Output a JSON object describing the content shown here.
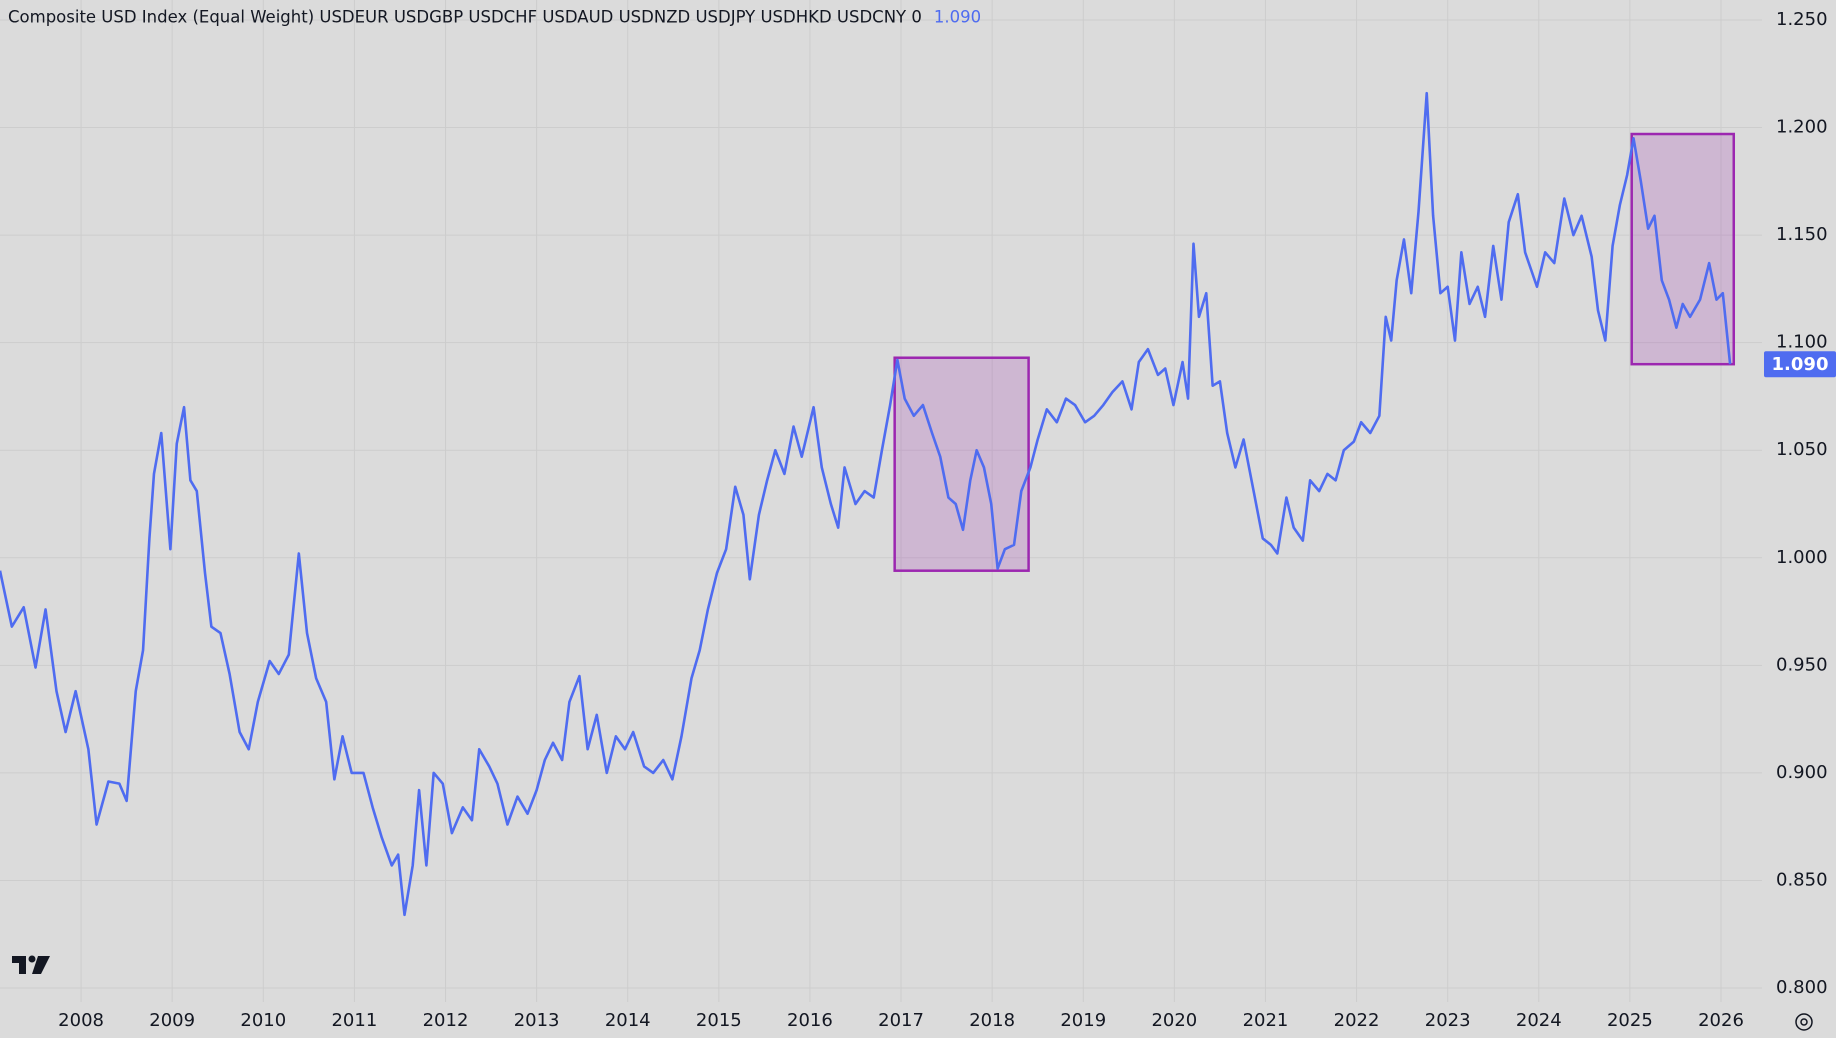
{
  "chart_data": {
    "type": "line",
    "title": "Composite USD Index (Equal Weight) USDEUR USDGBP USDCHF USDAUD USDNZD USDJPY USDHKD USDCNY 0",
    "last_value": {
      "value": 1.09,
      "label": "1.090"
    },
    "color": "#4f6cf0",
    "grid": true,
    "xlim": [
      2007.11,
      2026.45
    ],
    "ylim": [
      0.7935,
      1.2593
    ],
    "xticks": [
      2008,
      2009,
      2010,
      2011,
      2012,
      2013,
      2014,
      2015,
      2016,
      2017,
      2018,
      2019,
      2020,
      2021,
      2022,
      2023,
      2024,
      2025,
      2026
    ],
    "yticks": [
      {
        "value": 0.8,
        "label": "0.800"
      },
      {
        "value": 0.85,
        "label": "0.850"
      },
      {
        "value": 0.9,
        "label": "0.900"
      },
      {
        "value": 0.95,
        "label": "0.950"
      },
      {
        "value": 1.0,
        "label": "1.000"
      },
      {
        "value": 1.05,
        "label": "1.050"
      },
      {
        "value": 1.1,
        "label": "1.100"
      },
      {
        "value": 1.15,
        "label": "1.150"
      },
      {
        "value": 1.2,
        "label": "1.200"
      },
      {
        "value": 1.25,
        "label": "1.250"
      }
    ],
    "highlight_regions": [
      {
        "xlim": [
          2016.93,
          2018.4
        ],
        "ylim": [
          0.994,
          1.093
        ],
        "color": "#9c27b0"
      },
      {
        "xlim": [
          2025.02,
          2026.14
        ],
        "ylim": [
          1.09,
          1.197
        ],
        "color": "#9c27b0"
      }
    ],
    "x": [
      2007.11,
      2007.24,
      2007.37,
      2007.5,
      2007.61,
      2007.73,
      2007.83,
      2007.94,
      2008.08,
      2008.17,
      2008.3,
      2008.42,
      2008.5,
      2008.6,
      2008.68,
      2008.75,
      2008.8,
      2008.88,
      2008.98,
      2009.05,
      2009.13,
      2009.2,
      2009.27,
      2009.36,
      2009.43,
      2009.53,
      2009.63,
      2009.74,
      2009.84,
      2009.94,
      2010.07,
      2010.17,
      2010.28,
      2010.39,
      2010.48,
      2010.58,
      2010.69,
      2010.78,
      2010.87,
      2010.97,
      2011.1,
      2011.2,
      2011.3,
      2011.41,
      2011.48,
      2011.55,
      2011.64,
      2011.71,
      2011.79,
      2011.87,
      2011.97,
      2012.07,
      2012.19,
      2012.29,
      2012.37,
      2012.48,
      2012.57,
      2012.68,
      2012.79,
      2012.9,
      2013.0,
      2013.09,
      2013.18,
      2013.28,
      2013.36,
      2013.47,
      2013.56,
      2013.66,
      2013.77,
      2013.87,
      2013.97,
      2014.06,
      2014.18,
      2014.28,
      2014.39,
      2014.49,
      2014.59,
      2014.7,
      2014.79,
      2014.88,
      2014.98,
      2015.08,
      2015.18,
      2015.27,
      2015.34,
      2015.44,
      2015.53,
      2015.62,
      2015.72,
      2015.82,
      2015.91,
      2016.04,
      2016.13,
      2016.23,
      2016.31,
      2016.38,
      2016.5,
      2016.6,
      2016.7,
      2016.79,
      2016.88,
      2016.96,
      2017.04,
      2017.14,
      2017.24,
      2017.34,
      2017.43,
      2017.52,
      2017.6,
      2017.68,
      2017.76,
      2017.83,
      2017.91,
      2017.99,
      2018.06,
      2018.14,
      2018.24,
      2018.32,
      2018.42,
      2018.5,
      2018.6,
      2018.71,
      2018.81,
      2018.91,
      2019.02,
      2019.12,
      2019.22,
      2019.32,
      2019.43,
      2019.53,
      2019.61,
      2019.71,
      2019.82,
      2019.9,
      2019.99,
      2020.09,
      2020.15,
      2020.21,
      2020.27,
      2020.35,
      2020.42,
      2020.5,
      2020.58,
      2020.67,
      2020.76,
      2020.87,
      2020.97,
      2021.06,
      2021.13,
      2021.23,
      2021.31,
      2021.41,
      2021.49,
      2021.59,
      2021.68,
      2021.77,
      2021.86,
      2021.97,
      2022.05,
      2022.15,
      2022.25,
      2022.32,
      2022.38,
      2022.44,
      2022.52,
      2022.6,
      2022.68,
      2022.77,
      2022.84,
      2022.92,
      2023.0,
      2023.08,
      2023.15,
      2023.24,
      2023.33,
      2023.41,
      2023.5,
      2023.59,
      2023.67,
      2023.77,
      2023.85,
      2023.98,
      2024.07,
      2024.17,
      2024.28,
      2024.38,
      2024.47,
      2024.58,
      2024.65,
      2024.73,
      2024.81,
      2024.89,
      2024.97,
      2025.04,
      2025.12,
      2025.2,
      2025.27,
      2025.35,
      2025.43,
      2025.51,
      2025.58,
      2025.66,
      2025.77,
      2025.87,
      2025.95,
      2026.02,
      2026.1
    ],
    "values": [
      0.994,
      0.968,
      0.977,
      0.949,
      0.976,
      0.938,
      0.919,
      0.938,
      0.911,
      0.876,
      0.896,
      0.895,
      0.887,
      0.938,
      0.957,
      1.009,
      1.039,
      1.058,
      1.004,
      1.053,
      1.07,
      1.036,
      1.031,
      0.993,
      0.968,
      0.965,
      0.946,
      0.919,
      0.911,
      0.933,
      0.952,
      0.946,
      0.955,
      1.002,
      0.965,
      0.944,
      0.933,
      0.897,
      0.917,
      0.9,
      0.9,
      0.884,
      0.87,
      0.857,
      0.862,
      0.834,
      0.857,
      0.892,
      0.857,
      0.9,
      0.895,
      0.872,
      0.884,
      0.878,
      0.911,
      0.903,
      0.895,
      0.876,
      0.889,
      0.881,
      0.892,
      0.906,
      0.914,
      0.906,
      0.933,
      0.945,
      0.911,
      0.927,
      0.9,
      0.917,
      0.911,
      0.919,
      0.903,
      0.9,
      0.906,
      0.897,
      0.917,
      0.944,
      0.957,
      0.976,
      0.993,
      1.004,
      1.033,
      1.02,
      0.99,
      1.02,
      1.036,
      1.05,
      1.039,
      1.061,
      1.047,
      1.07,
      1.042,
      1.025,
      1.014,
      1.042,
      1.025,
      1.031,
      1.028,
      1.05,
      1.071,
      1.092,
      1.074,
      1.066,
      1.071,
      1.058,
      1.047,
      1.028,
      1.025,
      1.013,
      1.036,
      1.05,
      1.042,
      1.025,
      0.995,
      1.004,
      1.006,
      1.031,
      1.042,
      1.055,
      1.069,
      1.063,
      1.074,
      1.071,
      1.063,
      1.066,
      1.071,
      1.077,
      1.082,
      1.069,
      1.091,
      1.097,
      1.085,
      1.088,
      1.071,
      1.091,
      1.074,
      1.146,
      1.112,
      1.123,
      1.08,
      1.082,
      1.058,
      1.042,
      1.055,
      1.031,
      1.009,
      1.006,
      1.002,
      1.028,
      1.014,
      1.008,
      1.036,
      1.031,
      1.039,
      1.036,
      1.05,
      1.054,
      1.063,
      1.058,
      1.066,
      1.112,
      1.101,
      1.129,
      1.148,
      1.123,
      1.161,
      1.216,
      1.159,
      1.123,
      1.126,
      1.101,
      1.142,
      1.118,
      1.126,
      1.112,
      1.145,
      1.12,
      1.156,
      1.169,
      1.142,
      1.126,
      1.142,
      1.137,
      1.167,
      1.15,
      1.159,
      1.14,
      1.115,
      1.101,
      1.145,
      1.164,
      1.178,
      1.195,
      1.175,
      1.153,
      1.159,
      1.129,
      1.12,
      1.107,
      1.118,
      1.112,
      1.12,
      1.137,
      1.12,
      1.123,
      1.09
    ]
  }
}
